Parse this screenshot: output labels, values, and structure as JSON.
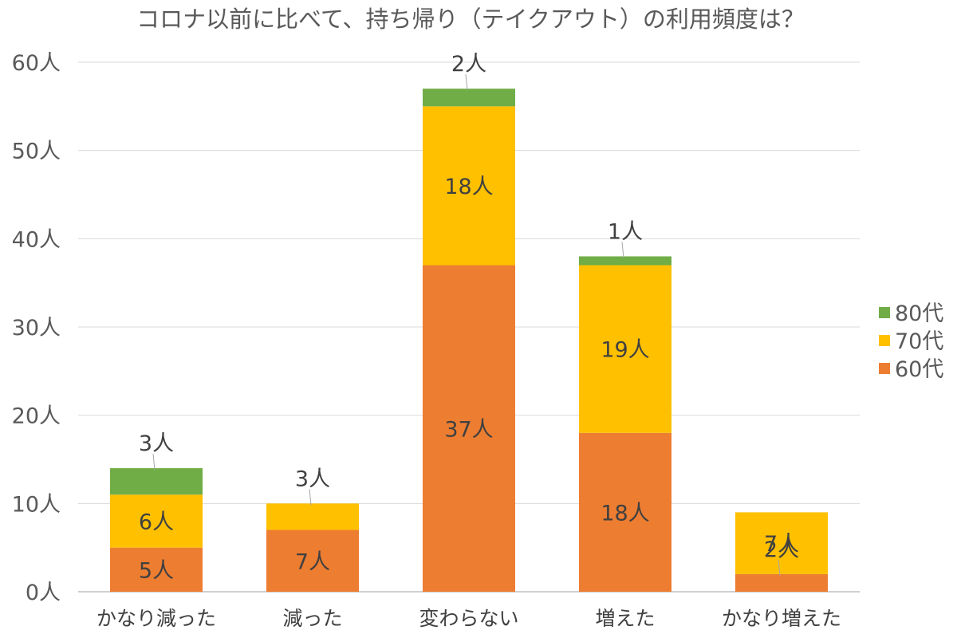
{
  "chart_data": {
    "type": "bar",
    "stacked": true,
    "title": "コロナ以前に比べて、持ち帰り（テイクアウト）の利用頻度は？",
    "xlabel": "",
    "ylabel": "",
    "ylim": [
      0,
      60
    ],
    "ytick_labels": [
      "0人",
      "10人",
      "20人",
      "30人",
      "40人",
      "50人",
      "60人"
    ],
    "yticks": [
      0,
      10,
      20,
      30,
      40,
      50,
      60
    ],
    "categories": [
      "かなり減った",
      "減った",
      "変わらない",
      "増えた",
      "かなり増えた"
    ],
    "series": [
      {
        "name": "60代",
        "color": "#ED7D31",
        "values": [
          5,
          7,
          37,
          18,
          2
        ],
        "labels": [
          "5人",
          "7人",
          "37人",
          "18人",
          "2人"
        ]
      },
      {
        "name": "70代",
        "color": "#FFC000",
        "values": [
          6,
          3,
          18,
          19,
          7
        ],
        "labels": [
          "6人",
          "3人",
          "18人",
          "19人",
          "7人"
        ]
      },
      {
        "name": "80代",
        "color": "#70AD47",
        "values": [
          3,
          0,
          2,
          1,
          0
        ],
        "labels": [
          "3人",
          "",
          "2人",
          "1人",
          ""
        ]
      }
    ],
    "grid": true,
    "legend_position": "right"
  }
}
